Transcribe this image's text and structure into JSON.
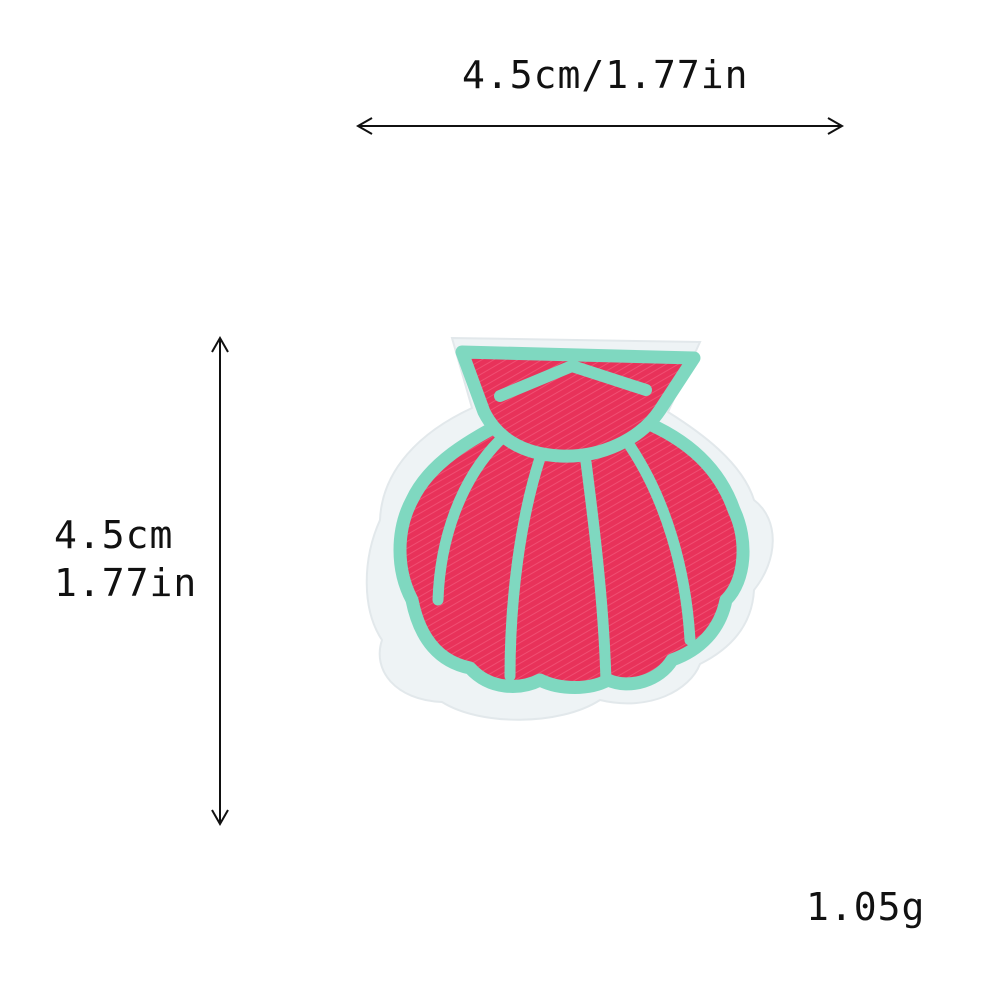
{
  "dimensions": {
    "width_label": "4.5cm/1.77in",
    "height_label_cm": "4.5cm",
    "height_label_in": "1.77in"
  },
  "weight_label": "1.05g",
  "colors": {
    "shell_fill": "#E8325A",
    "shell_outline": "#7FD8C0",
    "backing": "#EEF3F5",
    "arrow": "#111111"
  },
  "icons": {
    "horizontal_arrow": "double-headed-arrow-horizontal",
    "vertical_arrow": "double-headed-arrow-vertical",
    "product": "seashell-embroidered-patch"
  }
}
